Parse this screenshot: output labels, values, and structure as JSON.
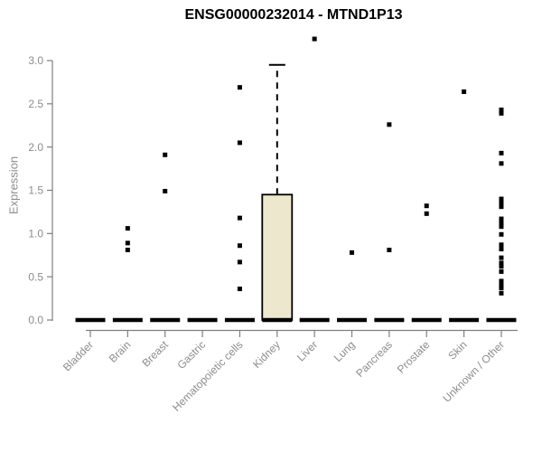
{
  "chart_data": {
    "type": "boxplot",
    "title": "ENSG00000232014 - MTND1P13",
    "ylabel": "Expression",
    "ylim": [
      0,
      3.3
    ],
    "yticks": [
      "0.0",
      "0.5",
      "1.0",
      "1.5",
      "2.0",
      "2.5",
      "3.0"
    ],
    "grid": false,
    "categories": [
      "Bladder",
      "Brain",
      "Breast",
      "Gastric",
      "Hematopoietic cells",
      "Kidney",
      "Liver",
      "Lung",
      "Pancreas",
      "Prostate",
      "Skin",
      "Unknown / Other"
    ],
    "boxes": [
      {
        "category": "Bladder",
        "q1": 0,
        "median": 0,
        "q3": 0,
        "whisker_low": 0,
        "whisker_high": 0,
        "outliers": []
      },
      {
        "category": "Brain",
        "q1": 0,
        "median": 0,
        "q3": 0,
        "whisker_low": 0,
        "whisker_high": 0,
        "outliers": [
          1.06,
          0.89,
          0.81
        ]
      },
      {
        "category": "Breast",
        "q1": 0,
        "median": 0,
        "q3": 0,
        "whisker_low": 0,
        "whisker_high": 0,
        "outliers": [
          1.91,
          1.49
        ]
      },
      {
        "category": "Gastric",
        "q1": 0,
        "median": 0,
        "q3": 0,
        "whisker_low": 0,
        "whisker_high": 0,
        "outliers": []
      },
      {
        "category": "Hematopoietic cells",
        "q1": 0,
        "median": 0,
        "q3": 0,
        "whisker_low": 0,
        "whisker_high": 0,
        "outliers": [
          2.69,
          2.05,
          1.18,
          0.86,
          0.67,
          0.36
        ]
      },
      {
        "category": "Kidney",
        "q1": 0,
        "median": 0,
        "q3": 1.45,
        "whisker_low": 0,
        "whisker_high": 2.95,
        "outliers": []
      },
      {
        "category": "Liver",
        "q1": 0,
        "median": 0,
        "q3": 0,
        "whisker_low": 0,
        "whisker_high": 0,
        "outliers": [
          3.25
        ]
      },
      {
        "category": "Lung",
        "q1": 0,
        "median": 0,
        "q3": 0,
        "whisker_low": 0,
        "whisker_high": 0,
        "outliers": [
          0.78
        ]
      },
      {
        "category": "Pancreas",
        "q1": 0,
        "median": 0,
        "q3": 0,
        "whisker_low": 0,
        "whisker_high": 0,
        "outliers": [
          2.26,
          0.81
        ]
      },
      {
        "category": "Prostate",
        "q1": 0,
        "median": 0,
        "q3": 0,
        "whisker_low": 0,
        "whisker_high": 0,
        "outliers": [
          1.32,
          1.23
        ]
      },
      {
        "category": "Skin",
        "q1": 0,
        "median": 0,
        "q3": 0,
        "whisker_low": 0,
        "whisker_high": 0,
        "outliers": [
          2.64
        ]
      },
      {
        "category": "Unknown / Other",
        "q1": 0,
        "median": 0,
        "q3": 0,
        "whisker_low": 0,
        "whisker_high": 0,
        "outliers": [
          2.43,
          2.39,
          1.93,
          1.81,
          1.4,
          1.35,
          1.31,
          1.17,
          1.12,
          1.08,
          0.99,
          0.87,
          0.82,
          0.72,
          0.66,
          0.62,
          0.56,
          0.45,
          0.4,
          0.37,
          0.31
        ]
      }
    ],
    "colors": {
      "box_fill": "#EDE8CD",
      "box_stroke": "#000000",
      "point": "#000000",
      "axis": "#7f7f7f",
      "text": "#8c8c8c",
      "title": "#000000"
    }
  }
}
